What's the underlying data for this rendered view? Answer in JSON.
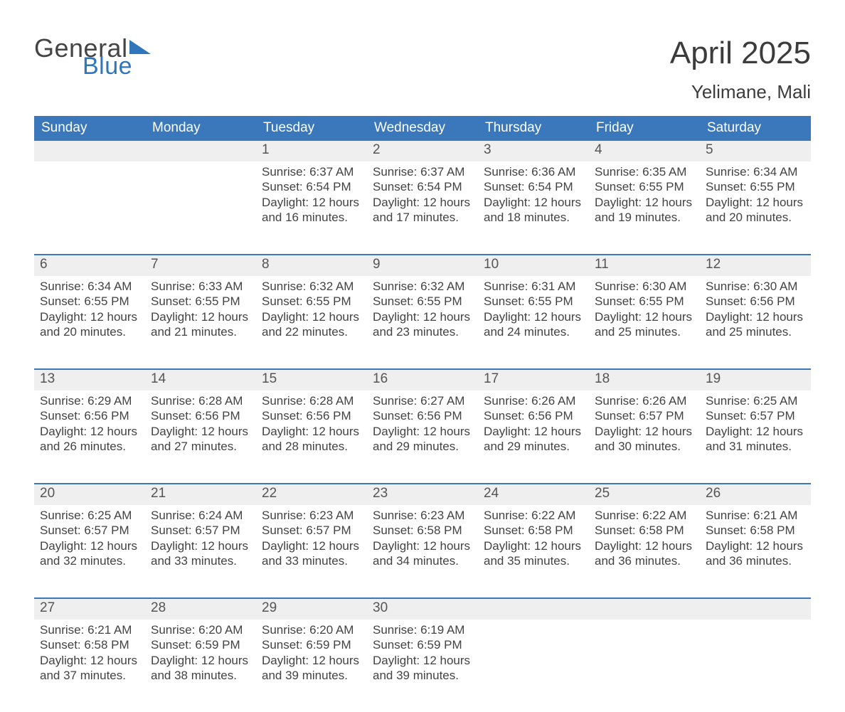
{
  "logo": {
    "word1": "General",
    "word2": "Blue",
    "text_color": "#444444",
    "accent_color": "#2f76bb"
  },
  "title": "April 2025",
  "subtitle": "Yelimane, Mali",
  "colors": {
    "header_bg": "#3b78bb",
    "header_text": "#ffffff",
    "daynum_bg": "#efefef",
    "row_border": "#3b78bb",
    "body_text": "#434343",
    "page_bg": "#ffffff"
  },
  "fontsize": {
    "title": 44,
    "subtitle": 26,
    "weekday": 19,
    "daynum": 19,
    "cell": 17
  },
  "weekdays": [
    "Sunday",
    "Monday",
    "Tuesday",
    "Wednesday",
    "Thursday",
    "Friday",
    "Saturday"
  ],
  "weeks": [
    [
      null,
      null,
      {
        "n": "1",
        "sr": "Sunrise: 6:37 AM",
        "ss": "Sunset: 6:54 PM",
        "d1": "Daylight: 12 hours",
        "d2": "and 16 minutes."
      },
      {
        "n": "2",
        "sr": "Sunrise: 6:37 AM",
        "ss": "Sunset: 6:54 PM",
        "d1": "Daylight: 12 hours",
        "d2": "and 17 minutes."
      },
      {
        "n": "3",
        "sr": "Sunrise: 6:36 AM",
        "ss": "Sunset: 6:54 PM",
        "d1": "Daylight: 12 hours",
        "d2": "and 18 minutes."
      },
      {
        "n": "4",
        "sr": "Sunrise: 6:35 AM",
        "ss": "Sunset: 6:55 PM",
        "d1": "Daylight: 12 hours",
        "d2": "and 19 minutes."
      },
      {
        "n": "5",
        "sr": "Sunrise: 6:34 AM",
        "ss": "Sunset: 6:55 PM",
        "d1": "Daylight: 12 hours",
        "d2": "and 20 minutes."
      }
    ],
    [
      {
        "n": "6",
        "sr": "Sunrise: 6:34 AM",
        "ss": "Sunset: 6:55 PM",
        "d1": "Daylight: 12 hours",
        "d2": "and 20 minutes."
      },
      {
        "n": "7",
        "sr": "Sunrise: 6:33 AM",
        "ss": "Sunset: 6:55 PM",
        "d1": "Daylight: 12 hours",
        "d2": "and 21 minutes."
      },
      {
        "n": "8",
        "sr": "Sunrise: 6:32 AM",
        "ss": "Sunset: 6:55 PM",
        "d1": "Daylight: 12 hours",
        "d2": "and 22 minutes."
      },
      {
        "n": "9",
        "sr": "Sunrise: 6:32 AM",
        "ss": "Sunset: 6:55 PM",
        "d1": "Daylight: 12 hours",
        "d2": "and 23 minutes."
      },
      {
        "n": "10",
        "sr": "Sunrise: 6:31 AM",
        "ss": "Sunset: 6:55 PM",
        "d1": "Daylight: 12 hours",
        "d2": "and 24 minutes."
      },
      {
        "n": "11",
        "sr": "Sunrise: 6:30 AM",
        "ss": "Sunset: 6:55 PM",
        "d1": "Daylight: 12 hours",
        "d2": "and 25 minutes."
      },
      {
        "n": "12",
        "sr": "Sunrise: 6:30 AM",
        "ss": "Sunset: 6:56 PM",
        "d1": "Daylight: 12 hours",
        "d2": "and 25 minutes."
      }
    ],
    [
      {
        "n": "13",
        "sr": "Sunrise: 6:29 AM",
        "ss": "Sunset: 6:56 PM",
        "d1": "Daylight: 12 hours",
        "d2": "and 26 minutes."
      },
      {
        "n": "14",
        "sr": "Sunrise: 6:28 AM",
        "ss": "Sunset: 6:56 PM",
        "d1": "Daylight: 12 hours",
        "d2": "and 27 minutes."
      },
      {
        "n": "15",
        "sr": "Sunrise: 6:28 AM",
        "ss": "Sunset: 6:56 PM",
        "d1": "Daylight: 12 hours",
        "d2": "and 28 minutes."
      },
      {
        "n": "16",
        "sr": "Sunrise: 6:27 AM",
        "ss": "Sunset: 6:56 PM",
        "d1": "Daylight: 12 hours",
        "d2": "and 29 minutes."
      },
      {
        "n": "17",
        "sr": "Sunrise: 6:26 AM",
        "ss": "Sunset: 6:56 PM",
        "d1": "Daylight: 12 hours",
        "d2": "and 29 minutes."
      },
      {
        "n": "18",
        "sr": "Sunrise: 6:26 AM",
        "ss": "Sunset: 6:57 PM",
        "d1": "Daylight: 12 hours",
        "d2": "and 30 minutes."
      },
      {
        "n": "19",
        "sr": "Sunrise: 6:25 AM",
        "ss": "Sunset: 6:57 PM",
        "d1": "Daylight: 12 hours",
        "d2": "and 31 minutes."
      }
    ],
    [
      {
        "n": "20",
        "sr": "Sunrise: 6:25 AM",
        "ss": "Sunset: 6:57 PM",
        "d1": "Daylight: 12 hours",
        "d2": "and 32 minutes."
      },
      {
        "n": "21",
        "sr": "Sunrise: 6:24 AM",
        "ss": "Sunset: 6:57 PM",
        "d1": "Daylight: 12 hours",
        "d2": "and 33 minutes."
      },
      {
        "n": "22",
        "sr": "Sunrise: 6:23 AM",
        "ss": "Sunset: 6:57 PM",
        "d1": "Daylight: 12 hours",
        "d2": "and 33 minutes."
      },
      {
        "n": "23",
        "sr": "Sunrise: 6:23 AM",
        "ss": "Sunset: 6:58 PM",
        "d1": "Daylight: 12 hours",
        "d2": "and 34 minutes."
      },
      {
        "n": "24",
        "sr": "Sunrise: 6:22 AM",
        "ss": "Sunset: 6:58 PM",
        "d1": "Daylight: 12 hours",
        "d2": "and 35 minutes."
      },
      {
        "n": "25",
        "sr": "Sunrise: 6:22 AM",
        "ss": "Sunset: 6:58 PM",
        "d1": "Daylight: 12 hours",
        "d2": "and 36 minutes."
      },
      {
        "n": "26",
        "sr": "Sunrise: 6:21 AM",
        "ss": "Sunset: 6:58 PM",
        "d1": "Daylight: 12 hours",
        "d2": "and 36 minutes."
      }
    ],
    [
      {
        "n": "27",
        "sr": "Sunrise: 6:21 AM",
        "ss": "Sunset: 6:58 PM",
        "d1": "Daylight: 12 hours",
        "d2": "and 37 minutes."
      },
      {
        "n": "28",
        "sr": "Sunrise: 6:20 AM",
        "ss": "Sunset: 6:59 PM",
        "d1": "Daylight: 12 hours",
        "d2": "and 38 minutes."
      },
      {
        "n": "29",
        "sr": "Sunrise: 6:20 AM",
        "ss": "Sunset: 6:59 PM",
        "d1": "Daylight: 12 hours",
        "d2": "and 39 minutes."
      },
      {
        "n": "30",
        "sr": "Sunrise: 6:19 AM",
        "ss": "Sunset: 6:59 PM",
        "d1": "Daylight: 12 hours",
        "d2": "and 39 minutes."
      },
      null,
      null,
      null
    ]
  ]
}
